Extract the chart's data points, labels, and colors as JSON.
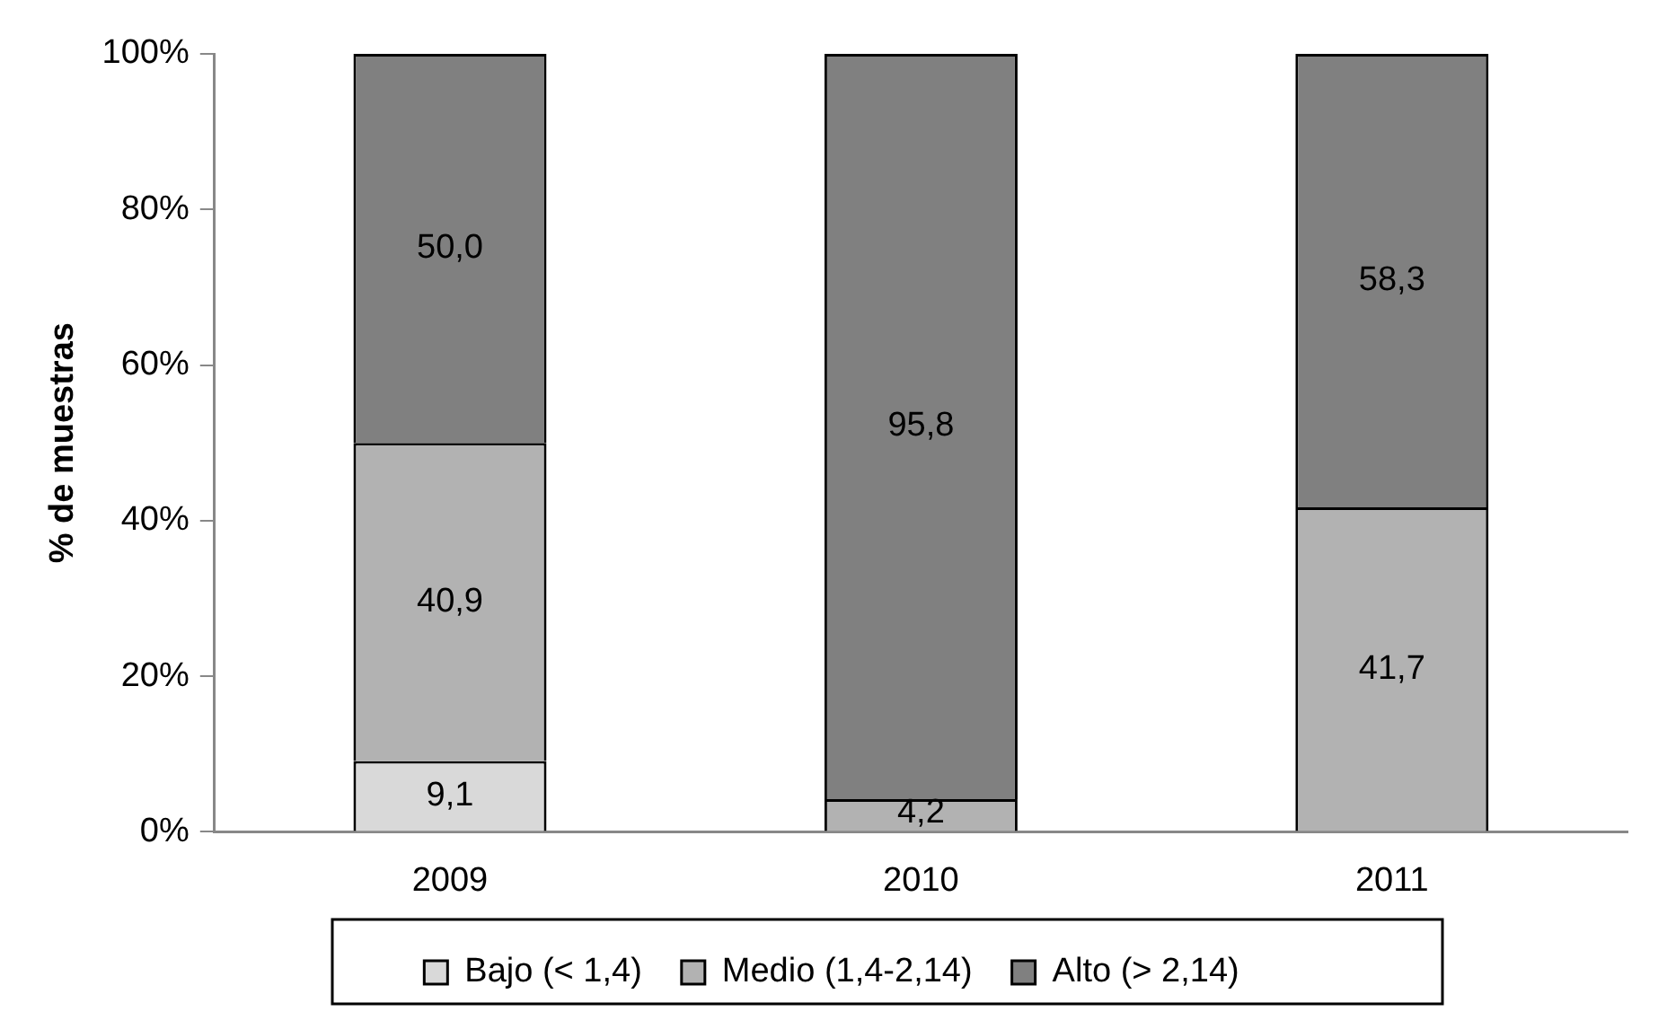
{
  "chart_data": {
    "type": "bar",
    "stacked": true,
    "ylabel": "% de muestras",
    "categories": [
      "2009",
      "2010",
      "2011"
    ],
    "series": [
      {
        "name": "Bajo (< 1,4)",
        "color": "#d9d9d9",
        "values": [
          9.1,
          null,
          null
        ],
        "value_labels": [
          "9,1",
          null,
          null
        ]
      },
      {
        "name": "Medio (1,4-2,14)",
        "color": "#b2b2b2",
        "values": [
          40.9,
          4.2,
          41.7
        ],
        "value_labels": [
          "40,9",
          "4,2",
          "41,7"
        ]
      },
      {
        "name": "Alto (> 2,14)",
        "color": "#808080",
        "values": [
          50.0,
          95.8,
          58.3
        ],
        "value_labels": [
          "50,0",
          "95,8",
          "58,3"
        ]
      }
    ],
    "ylim": [
      0,
      100
    ],
    "yticks": [
      {
        "value": 0,
        "label": "0%"
      },
      {
        "value": 20,
        "label": "20%"
      },
      {
        "value": 40,
        "label": "40%"
      },
      {
        "value": 60,
        "label": "60%"
      },
      {
        "value": 80,
        "label": "80%"
      },
      {
        "value": 100,
        "label": "100%"
      }
    ],
    "grid": false,
    "legend": "bottom"
  }
}
